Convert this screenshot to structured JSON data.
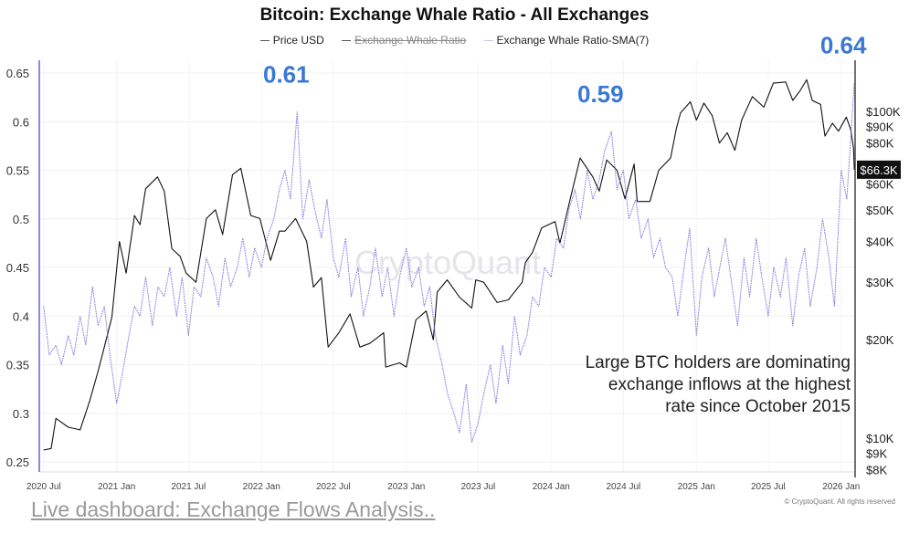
{
  "chart_data": {
    "type": "line",
    "title": "Bitcoin: Exchange Whale Ratio - All Exchanges",
    "legend": {
      "placement": "top-center",
      "entries": [
        "Price USD",
        "Exchange Whale Ratio",
        "Exchange Whale Ratio-SMA(7)"
      ],
      "hidden_entries": [
        "Exchange Whale Ratio"
      ]
    },
    "x_ticks": [
      "2020 Jul",
      "2021 Jan",
      "2021 Jul",
      "2022 Jan",
      "2022 Jul",
      "2023 Jan",
      "2023 Jul",
      "2024 Jan",
      "2024 Jul",
      "2025 Jan",
      "2025 Jul",
      "2026 Jan"
    ],
    "x_tick_dates": [
      "2020-07-01",
      "2021-01-01",
      "2021-07-01",
      "2022-01-01",
      "2022-07-01",
      "2023-01-01",
      "2023-07-01",
      "2024-01-01",
      "2024-07-01",
      "2025-01-01",
      "2025-07-01",
      "2026-01-01"
    ],
    "xlim": [
      "2020-06-20",
      "2026-02-05"
    ],
    "left_axis": {
      "ylim": [
        0.25,
        0.65
      ],
      "ticks": [
        "0.65",
        "0.6",
        "0.55",
        "0.5",
        "0.45",
        "0.4",
        "0.35",
        "0.3",
        "0.25"
      ]
    },
    "right_axis": {
      "scale": "log",
      "ylim": [
        8000,
        140000
      ],
      "ticks": [
        {
          "label": "$100K",
          "value": 100000
        },
        {
          "label": "$90K",
          "value": 90000
        },
        {
          "label": "$80K",
          "value": 80000
        },
        {
          "label": "$60K",
          "value": 60000
        },
        {
          "label": "$50K",
          "value": 50000
        },
        {
          "label": "$40K",
          "value": 40000
        },
        {
          "label": "$30K",
          "value": 30000
        },
        {
          "label": "$20K",
          "value": 20000
        },
        {
          "label": "$10K",
          "value": 10000
        },
        {
          "label": "$9K",
          "value": 9000
        },
        {
          "label": "$8K",
          "value": 8000
        }
      ]
    },
    "current_price_label": {
      "label": "$66.3K",
      "value": 66300
    },
    "grid": true,
    "colors": {
      "price": "#111111",
      "ratio_sma": "#7b6fe0",
      "annotation": "#3a78d4"
    },
    "series": [
      {
        "name": "Price USD",
        "axis": "right",
        "points": [
          [
            "2020-07-01",
            9200
          ],
          [
            "2020-07-20",
            9300
          ],
          [
            "2020-08-01",
            11500
          ],
          [
            "2020-09-01",
            10800
          ],
          [
            "2020-10-01",
            10600
          ],
          [
            "2020-10-25",
            13000
          ],
          [
            "2020-11-15",
            16000
          ],
          [
            "2020-12-01",
            19000
          ],
          [
            "2020-12-20",
            23500
          ],
          [
            "2021-01-08",
            40000
          ],
          [
            "2021-01-25",
            32000
          ],
          [
            "2021-02-15",
            48000
          ],
          [
            "2021-03-01",
            45000
          ],
          [
            "2021-03-15",
            58000
          ],
          [
            "2021-04-14",
            63000
          ],
          [
            "2021-05-01",
            57000
          ],
          [
            "2021-05-20",
            38000
          ],
          [
            "2021-06-10",
            36000
          ],
          [
            "2021-06-25",
            32000
          ],
          [
            "2021-07-20",
            30000
          ],
          [
            "2021-08-15",
            47000
          ],
          [
            "2021-09-07",
            50000
          ],
          [
            "2021-09-25",
            42000
          ],
          [
            "2021-10-20",
            64000
          ],
          [
            "2021-11-10",
            67000
          ],
          [
            "2021-12-05",
            48000
          ],
          [
            "2021-12-28",
            47000
          ],
          [
            "2022-01-24",
            35000
          ],
          [
            "2022-02-15",
            43000
          ],
          [
            "2022-03-01",
            43000
          ],
          [
            "2022-03-28",
            47000
          ],
          [
            "2022-04-25",
            40000
          ],
          [
            "2022-05-12",
            29000
          ],
          [
            "2022-06-01",
            31000
          ],
          [
            "2022-06-18",
            19000
          ],
          [
            "2022-07-15",
            21000
          ],
          [
            "2022-08-12",
            24000
          ],
          [
            "2022-09-06",
            19000
          ],
          [
            "2022-10-01",
            19500
          ],
          [
            "2022-11-05",
            21000
          ],
          [
            "2022-11-10",
            16500
          ],
          [
            "2022-12-15",
            17000
          ],
          [
            "2023-01-01",
            16500
          ],
          [
            "2023-01-25",
            23000
          ],
          [
            "2023-02-20",
            24500
          ],
          [
            "2023-03-10",
            20000
          ],
          [
            "2023-03-20",
            28000
          ],
          [
            "2023-04-14",
            30500
          ],
          [
            "2023-05-15",
            27000
          ],
          [
            "2023-06-15",
            25000
          ],
          [
            "2023-06-25",
            30500
          ],
          [
            "2023-07-15",
            30000
          ],
          [
            "2023-08-18",
            26000
          ],
          [
            "2023-09-15",
            26500
          ],
          [
            "2023-10-20",
            30000
          ],
          [
            "2023-10-28",
            34500
          ],
          [
            "2023-11-15",
            37000
          ],
          [
            "2023-12-08",
            44000
          ],
          [
            "2024-01-11",
            46000
          ],
          [
            "2024-01-23",
            39500
          ],
          [
            "2024-02-15",
            52000
          ],
          [
            "2024-03-01",
            62000
          ],
          [
            "2024-03-14",
            72000
          ],
          [
            "2024-04-15",
            63000
          ],
          [
            "2024-05-01",
            57000
          ],
          [
            "2024-05-20",
            71000
          ],
          [
            "2024-06-15",
            66000
          ],
          [
            "2024-07-05",
            54000
          ],
          [
            "2024-07-28",
            69000
          ],
          [
            "2024-08-05",
            53000
          ],
          [
            "2024-09-06",
            53000
          ],
          [
            "2024-09-28",
            66000
          ],
          [
            "2024-10-28",
            72000
          ],
          [
            "2024-11-12",
            89000
          ],
          [
            "2024-11-22",
            99000
          ],
          [
            "2024-12-17",
            107000
          ],
          [
            "2025-01-01",
            94000
          ],
          [
            "2025-01-20",
            106000
          ],
          [
            "2025-02-10",
            97000
          ],
          [
            "2025-02-28",
            80000
          ],
          [
            "2025-03-20",
            86000
          ],
          [
            "2025-04-08",
            76000
          ],
          [
            "2025-04-25",
            94000
          ],
          [
            "2025-05-22",
            111000
          ],
          [
            "2025-06-20",
            103000
          ],
          [
            "2025-07-14",
            122000
          ],
          [
            "2025-08-14",
            123000
          ],
          [
            "2025-09-01",
            108000
          ],
          [
            "2025-09-20",
            116000
          ],
          [
            "2025-10-06",
            125000
          ],
          [
            "2025-10-20",
            108000
          ],
          [
            "2025-11-10",
            105000
          ],
          [
            "2025-11-21",
            84000
          ],
          [
            "2025-12-10",
            92000
          ],
          [
            "2025-12-25",
            87000
          ],
          [
            "2026-01-14",
            96000
          ],
          [
            "2026-01-25",
            88000
          ],
          [
            "2026-02-01",
            77000
          ],
          [
            "2026-02-03",
            66300
          ]
        ]
      },
      {
        "name": "Exchange Whale Ratio-SMA(7)",
        "axis": "left",
        "points": [
          [
            "2020-07-01",
            0.41
          ],
          [
            "2020-07-15",
            0.36
          ],
          [
            "2020-08-01",
            0.37
          ],
          [
            "2020-08-15",
            0.35
          ],
          [
            "2020-09-01",
            0.38
          ],
          [
            "2020-09-15",
            0.36
          ],
          [
            "2020-10-01",
            0.4
          ],
          [
            "2020-10-15",
            0.37
          ],
          [
            "2020-11-01",
            0.43
          ],
          [
            "2020-11-15",
            0.39
          ],
          [
            "2020-12-01",
            0.41
          ],
          [
            "2020-12-15",
            0.36
          ],
          [
            "2021-01-01",
            0.31
          ],
          [
            "2021-01-15",
            0.34
          ],
          [
            "2021-02-01",
            0.38
          ],
          [
            "2021-02-15",
            0.41
          ],
          [
            "2021-03-01",
            0.4
          ],
          [
            "2021-03-15",
            0.44
          ],
          [
            "2021-04-01",
            0.39
          ],
          [
            "2021-04-15",
            0.43
          ],
          [
            "2021-05-01",
            0.42
          ],
          [
            "2021-05-15",
            0.45
          ],
          [
            "2021-06-01",
            0.4
          ],
          [
            "2021-06-15",
            0.44
          ],
          [
            "2021-07-01",
            0.38
          ],
          [
            "2021-07-15",
            0.43
          ],
          [
            "2021-08-01",
            0.42
          ],
          [
            "2021-08-15",
            0.46
          ],
          [
            "2021-09-01",
            0.44
          ],
          [
            "2021-09-15",
            0.41
          ],
          [
            "2021-10-01",
            0.46
          ],
          [
            "2021-10-15",
            0.43
          ],
          [
            "2021-11-01",
            0.45
          ],
          [
            "2021-11-15",
            0.48
          ],
          [
            "2021-12-01",
            0.44
          ],
          [
            "2021-12-15",
            0.47
          ],
          [
            "2022-01-01",
            0.45
          ],
          [
            "2022-01-15",
            0.48
          ],
          [
            "2022-02-01",
            0.5
          ],
          [
            "2022-02-15",
            0.53
          ],
          [
            "2022-03-01",
            0.55
          ],
          [
            "2022-03-15",
            0.52
          ],
          [
            "2022-04-01",
            0.61
          ],
          [
            "2022-04-15",
            0.5
          ],
          [
            "2022-05-01",
            0.54
          ],
          [
            "2022-05-15",
            0.51
          ],
          [
            "2022-06-01",
            0.48
          ],
          [
            "2022-06-15",
            0.52
          ],
          [
            "2022-07-01",
            0.46
          ],
          [
            "2022-07-15",
            0.44
          ],
          [
            "2022-08-01",
            0.48
          ],
          [
            "2022-08-15",
            0.42
          ],
          [
            "2022-09-01",
            0.45
          ],
          [
            "2022-09-15",
            0.4
          ],
          [
            "2022-10-01",
            0.43
          ],
          [
            "2022-10-15",
            0.47
          ],
          [
            "2022-11-01",
            0.42
          ],
          [
            "2022-11-15",
            0.45
          ],
          [
            "2022-12-01",
            0.4
          ],
          [
            "2022-12-15",
            0.44
          ],
          [
            "2023-01-01",
            0.47
          ],
          [
            "2023-01-15",
            0.43
          ],
          [
            "2023-02-01",
            0.45
          ],
          [
            "2023-02-15",
            0.41
          ],
          [
            "2023-03-01",
            0.43
          ],
          [
            "2023-03-15",
            0.38
          ],
          [
            "2023-04-01",
            0.35
          ],
          [
            "2023-04-15",
            0.32
          ],
          [
            "2023-05-01",
            0.3
          ],
          [
            "2023-05-15",
            0.28
          ],
          [
            "2023-06-01",
            0.33
          ],
          [
            "2023-06-15",
            0.27
          ],
          [
            "2023-07-01",
            0.29
          ],
          [
            "2023-07-15",
            0.32
          ],
          [
            "2023-08-01",
            0.35
          ],
          [
            "2023-08-15",
            0.31
          ],
          [
            "2023-09-01",
            0.37
          ],
          [
            "2023-09-15",
            0.33
          ],
          [
            "2023-10-01",
            0.4
          ],
          [
            "2023-10-15",
            0.36
          ],
          [
            "2023-11-01",
            0.38
          ],
          [
            "2023-11-15",
            0.42
          ],
          [
            "2023-12-01",
            0.41
          ],
          [
            "2023-12-15",
            0.45
          ],
          [
            "2024-01-01",
            0.44
          ],
          [
            "2024-01-15",
            0.48
          ],
          [
            "2024-02-01",
            0.47
          ],
          [
            "2024-02-15",
            0.51
          ],
          [
            "2024-03-01",
            0.53
          ],
          [
            "2024-03-15",
            0.5
          ],
          [
            "2024-04-01",
            0.55
          ],
          [
            "2024-04-15",
            0.52
          ],
          [
            "2024-05-01",
            0.54
          ],
          [
            "2024-05-15",
            0.57
          ],
          [
            "2024-06-01",
            0.59
          ],
          [
            "2024-06-15",
            0.53
          ],
          [
            "2024-07-01",
            0.55
          ],
          [
            "2024-07-15",
            0.5
          ],
          [
            "2024-08-01",
            0.52
          ],
          [
            "2024-08-15",
            0.48
          ],
          [
            "2024-09-01",
            0.5
          ],
          [
            "2024-09-15",
            0.46
          ],
          [
            "2024-10-01",
            0.48
          ],
          [
            "2024-10-15",
            0.45
          ],
          [
            "2024-11-01",
            0.44
          ],
          [
            "2024-11-15",
            0.4
          ],
          [
            "2024-12-01",
            0.45
          ],
          [
            "2024-12-15",
            0.49
          ],
          [
            "2025-01-01",
            0.38
          ],
          [
            "2025-01-15",
            0.44
          ],
          [
            "2025-02-01",
            0.47
          ],
          [
            "2025-02-15",
            0.42
          ],
          [
            "2025-03-01",
            0.45
          ],
          [
            "2025-03-15",
            0.48
          ],
          [
            "2025-04-01",
            0.43
          ],
          [
            "2025-04-15",
            0.39
          ],
          [
            "2025-05-01",
            0.46
          ],
          [
            "2025-05-15",
            0.42
          ],
          [
            "2025-06-01",
            0.48
          ],
          [
            "2025-06-15",
            0.44
          ],
          [
            "2025-07-01",
            0.4
          ],
          [
            "2025-07-15",
            0.45
          ],
          [
            "2025-08-01",
            0.42
          ],
          [
            "2025-08-15",
            0.46
          ],
          [
            "2025-09-01",
            0.39
          ],
          [
            "2025-09-15",
            0.44
          ],
          [
            "2025-10-01",
            0.47
          ],
          [
            "2025-10-15",
            0.41
          ],
          [
            "2025-11-01",
            0.45
          ],
          [
            "2025-11-15",
            0.5
          ],
          [
            "2025-12-01",
            0.46
          ],
          [
            "2025-12-15",
            0.41
          ],
          [
            "2026-01-01",
            0.55
          ],
          [
            "2026-01-15",
            0.52
          ],
          [
            "2026-02-03",
            0.64
          ]
        ]
      }
    ],
    "annotations": [
      {
        "text": "0.61",
        "date": "2022-04-01",
        "value": 0.61
      },
      {
        "text": "0.59",
        "date": "2024-06-01",
        "value": 0.59
      },
      {
        "text": "0.64",
        "date": "2026-02-03",
        "value": 0.64
      }
    ],
    "note": [
      "Large BTC holders are dominating",
      "exchange inflows at the highest",
      "rate since October 2015"
    ],
    "watermark": "CryptoQuant"
  },
  "footer": {
    "link": "Live dashboard: Exchange Flows Analysis..",
    "copyright": "© CryptoQuant. All rights reserved"
  }
}
